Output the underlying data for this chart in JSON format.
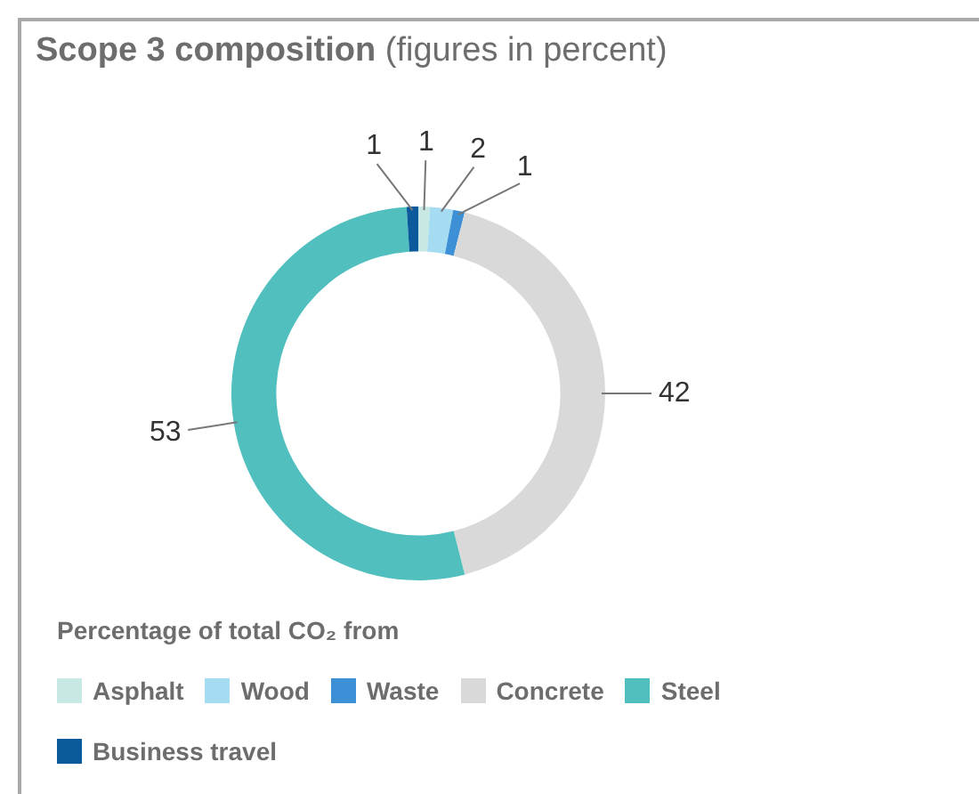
{
  "chart_data": {
    "type": "donut",
    "title": "Scope 3 composition",
    "subtitle": "(figures in percent)",
    "legend_title": "Percentage of total CO₂ from",
    "categories": [
      "Asphalt",
      "Wood",
      "Waste",
      "Concrete",
      "Steel",
      "Business travel"
    ],
    "values": [
      1,
      2,
      1,
      42,
      53,
      1
    ],
    "colors": [
      "#c8e9e3",
      "#a6dcf2",
      "#3d8fd6",
      "#d9d9d9",
      "#52bfbf",
      "#0a5a9c"
    ],
    "data_labels": true,
    "legend": "bottom"
  }
}
